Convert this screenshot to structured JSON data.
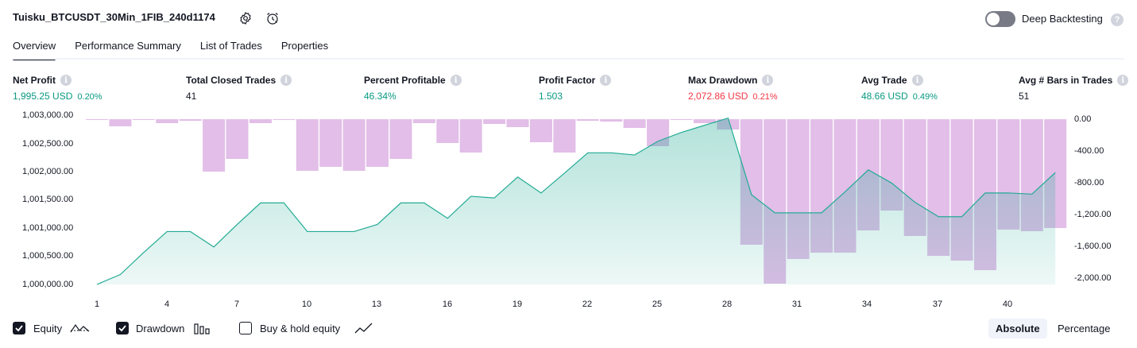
{
  "header": {
    "title": "Tuisku_BTCUSDT_30Min_1FIB_240d1174",
    "deep_backtesting_label": "Deep Backtesting",
    "deep_backtesting_on": false
  },
  "tabs": [
    "Overview",
    "Performance Summary",
    "List of Trades",
    "Properties"
  ],
  "active_tab": "Overview",
  "metrics": [
    {
      "label": "Net Profit",
      "value": "1,995.25 USD",
      "pct": "0.20%",
      "color": "#089981"
    },
    {
      "label": "Total Closed Trades",
      "value": "41",
      "pct": "",
      "color": "#131722"
    },
    {
      "label": "Percent Profitable",
      "value": "46.34%",
      "pct": "",
      "color": "#089981"
    },
    {
      "label": "Profit Factor",
      "value": "1.503",
      "pct": "",
      "color": "#089981"
    },
    {
      "label": "Max Drawdown",
      "value": "2,072.86 USD",
      "pct": "0.21%",
      "color": "#f23645"
    },
    {
      "label": "Avg Trade",
      "value": "48.66 USD",
      "pct": "0.49%",
      "color": "#089981"
    },
    {
      "label": "Avg # Bars in Trades",
      "value": "51",
      "pct": "",
      "color": "#131722"
    }
  ],
  "chart_data": {
    "type": "area",
    "x": [
      1,
      2,
      3,
      4,
      5,
      6,
      7,
      8,
      9,
      10,
      11,
      12,
      13,
      14,
      15,
      16,
      17,
      18,
      19,
      20,
      21,
      22,
      23,
      24,
      25,
      26,
      27,
      28,
      29,
      30,
      31,
      32,
      33,
      34,
      35,
      36,
      37,
      38,
      39,
      40,
      41,
      42
    ],
    "series": [
      {
        "name": "Equity",
        "axis": "left",
        "values": [
          1000000,
          1000180,
          1000580,
          1000960,
          1000960,
          1000680,
          1001090,
          1001480,
          1001480,
          1000960,
          1000960,
          1000960,
          1001090,
          1001480,
          1001480,
          1001200,
          1001600,
          1001570,
          1001950,
          1001660,
          1002020,
          1002390,
          1002390,
          1002350,
          1002600,
          1002760,
          1002890,
          1003020,
          1001630,
          1001300,
          1001300,
          1001300,
          1001680,
          1002080,
          1001840,
          1001490,
          1001230,
          1001230,
          1001660,
          1001660,
          1001640,
          1002030
        ]
      },
      {
        "name": "Drawdown",
        "axis": "right",
        "type": "bar",
        "values": [
          0,
          -90,
          -10,
          -50,
          -20,
          -660,
          -500,
          -50,
          -10,
          -650,
          -600,
          -650,
          -600,
          -500,
          -50,
          -300,
          -420,
          -60,
          -100,
          -290,
          -420,
          -20,
          -30,
          -110,
          -340,
          0,
          -50,
          -130,
          -1580,
          -2070,
          -1760,
          -1680,
          -1680,
          -1400,
          -1150,
          -1470,
          -1720,
          -1780,
          -1900,
          -1390,
          -1410,
          -1370
        ]
      }
    ],
    "y_left_ticks": [
      "1,003,000.00",
      "1,002,500.00",
      "1,002,000.00",
      "1,001,500.00",
      "1,001,000.00",
      "1,000,500.00",
      "1,000,000.00"
    ],
    "y_left_range": [
      1000000,
      1003000
    ],
    "y_right_ticks": [
      "0.00",
      "-400.00",
      "-800.00",
      "-1,200.00",
      "-1,600.00",
      "-2,000.00"
    ],
    "y_right_range": [
      0,
      -2000
    ],
    "x_ticks": [
      "1",
      "4",
      "7",
      "10",
      "13",
      "16",
      "19",
      "22",
      "25",
      "28",
      "31",
      "34",
      "37",
      "40"
    ],
    "equity_color": "#22ab94",
    "drawdown_color": "#ce93d8"
  },
  "legend": [
    {
      "label": "Equity",
      "checked": true,
      "icon": "equity-line-icon"
    },
    {
      "label": "Drawdown",
      "checked": true,
      "icon": "drawdown-bars-icon"
    },
    {
      "label": "Buy & hold equity",
      "checked": false,
      "icon": "buy-hold-line-icon"
    }
  ],
  "scale_toggle": {
    "options": [
      "Absolute",
      "Percentage"
    ],
    "active": "Absolute"
  }
}
